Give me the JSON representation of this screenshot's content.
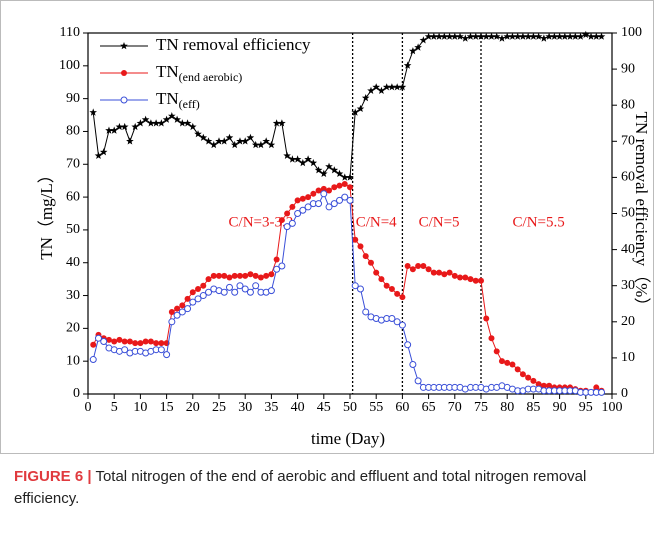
{
  "chart_data": {
    "type": "line",
    "xlabel": "time (Day)",
    "ylabel": "TN（mg/L）",
    "y2label": "TN removal efficiency（%）",
    "x": [
      1,
      2,
      3,
      4,
      5,
      6,
      7,
      8,
      9,
      10,
      11,
      12,
      13,
      14,
      15,
      16,
      17,
      18,
      19,
      20,
      21,
      22,
      23,
      24,
      25,
      26,
      27,
      28,
      29,
      30,
      31,
      32,
      33,
      34,
      35,
      36,
      37,
      38,
      39,
      40,
      41,
      42,
      43,
      44,
      45,
      46,
      47,
      48,
      49,
      50,
      51,
      52,
      53,
      54,
      55,
      56,
      57,
      58,
      59,
      60,
      61,
      62,
      63,
      64,
      65,
      66,
      67,
      68,
      69,
      70,
      71,
      72,
      73,
      74,
      75,
      76,
      77,
      78,
      79,
      80,
      81,
      82,
      83,
      84,
      85,
      86,
      87,
      88,
      89,
      90,
      91,
      92,
      93,
      94,
      95,
      96,
      97,
      98
    ],
    "series": [
      {
        "name": "TN removal efficiency",
        "color": "#000000",
        "marker": "star",
        "axis": "y2",
        "values": [
          78,
          66,
          67,
          73,
          73,
          74,
          74,
          70,
          74,
          75,
          76,
          75,
          75,
          75,
          76,
          77,
          76,
          75,
          75,
          74,
          72,
          71,
          70,
          69,
          70,
          70,
          71,
          69,
          70,
          70,
          71,
          69,
          69,
          70,
          69,
          75,
          75,
          66,
          65,
          65,
          64,
          65,
          64,
          62,
          61,
          63,
          62,
          61,
          60,
          60,
          78,
          79,
          82,
          84,
          85,
          84,
          85,
          85,
          85,
          85,
          91,
          95,
          96,
          98,
          99,
          99,
          99,
          99,
          99,
          99,
          99,
          98.5,
          99,
          99,
          99,
          99,
          99,
          99,
          98.5,
          99,
          99,
          99,
          99,
          99,
          99,
          99,
          98.5,
          99,
          99,
          99,
          99,
          99,
          99,
          99,
          99.5,
          99,
          99,
          99
        ]
      },
      {
        "name": "TN",
        "name_sub": "(end aerobic)",
        "color": "#e8191a",
        "marker": "filled-circle",
        "values": [
          15,
          18,
          17,
          16.5,
          16,
          16.5,
          16,
          16,
          15.5,
          15.5,
          16,
          16,
          15.5,
          15.5,
          15.5,
          25,
          26,
          27,
          29,
          31,
          32,
          33,
          35,
          36,
          36,
          36,
          35.5,
          36,
          36,
          36,
          36.5,
          36,
          35.5,
          36,
          36.5,
          41,
          53,
          55,
          57,
          59,
          59.5,
          60,
          61,
          62,
          62.5,
          62,
          63,
          63.5,
          64,
          63,
          47,
          45,
          42,
          40,
          37,
          35,
          33,
          32,
          30.5,
          29.5,
          39,
          38,
          39,
          39,
          38,
          37,
          37,
          36.5,
          37,
          36,
          35.5,
          35.5,
          35,
          34.5,
          34.5,
          23,
          17,
          13,
          10,
          9.5,
          9,
          7.5,
          6,
          5,
          4,
          3,
          2.5,
          2.5,
          2,
          2,
          2,
          2,
          1.5,
          1,
          1,
          0.5,
          2,
          1
        ]
      },
      {
        "name": "TN",
        "name_sub": "(eff)",
        "color": "#3a4fd8",
        "marker": "open-circle",
        "values": [
          10.5,
          17,
          16,
          14,
          13.5,
          13,
          13.5,
          12.5,
          13,
          13,
          12.5,
          13,
          13.5,
          13.5,
          12,
          22,
          24,
          25,
          26,
          28,
          29,
          30,
          31,
          32,
          31.5,
          31,
          32.5,
          31,
          33,
          32,
          31,
          33,
          31,
          31,
          31.5,
          38,
          39,
          51,
          52,
          55,
          56,
          57,
          58,
          58,
          61,
          57,
          58,
          59,
          60,
          59,
          33,
          32,
          25,
          23.5,
          23,
          22.5,
          23,
          23,
          22,
          21,
          15,
          9,
          4,
          2,
          2,
          2,
          2,
          2,
          2,
          2,
          2,
          1.5,
          2,
          2,
          2,
          1.5,
          2,
          2,
          2.5,
          2,
          1.5,
          1,
          1,
          1.5,
          1.5,
          1.5,
          1,
          1,
          1,
          1,
          1,
          1,
          1,
          0.5,
          0.5,
          0.5,
          0.5,
          0.5
        ]
      }
    ],
    "xlim": [
      0,
      100
    ],
    "xticks": [
      0,
      5,
      10,
      15,
      20,
      25,
      30,
      35,
      40,
      45,
      50,
      55,
      60,
      65,
      70,
      75,
      80,
      85,
      90,
      95,
      100
    ],
    "ylim": [
      0,
      110
    ],
    "yticks": [
      0,
      10,
      20,
      30,
      40,
      50,
      60,
      70,
      80,
      90,
      100,
      110
    ],
    "y2lim": [
      0,
      100
    ],
    "y2ticks": [
      0,
      10,
      20,
      30,
      40,
      50,
      60,
      70,
      80,
      90,
      100
    ],
    "vlines": [
      50.5,
      60,
      75
    ],
    "annotations": [
      {
        "text": "C/N=3-3.2"
      },
      {
        "text": "C/N=4"
      },
      {
        "text": "C/N=5"
      },
      {
        "text": "C/N=5.5"
      }
    ],
    "legend": "upper left",
    "grid": false
  },
  "caption": {
    "label": "FIGURE 6 |",
    "text": "Total nitrogen of the end of aerobic and effluent and total nitrogen removal efficiency."
  }
}
